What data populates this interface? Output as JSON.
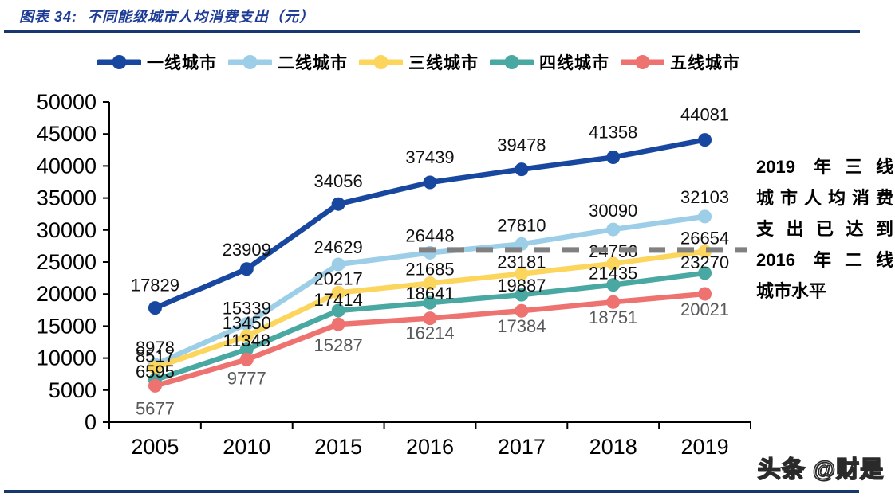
{
  "figure": {
    "title": "图表 34:  不同能级城市人均消费支出（元）"
  },
  "annotation": {
    "lines": [
      "2019 年三线",
      "城市人均消费",
      "支出已达到",
      "2016 年二线",
      "城市水平"
    ]
  },
  "watermark": "头条 @财是",
  "colors": {
    "title": "#1E3C96",
    "rule": "#17376E",
    "axis": "#000000",
    "reference_line": "#808080",
    "tier5_label_gray": "#58595B"
  },
  "chart_data": {
    "type": "line",
    "title": "不同能级城市人均消费支出（元）",
    "xlabel": "",
    "ylabel": "",
    "categories": [
      "2005",
      "2010",
      "2015",
      "2016",
      "2017",
      "2018",
      "2019"
    ],
    "series": [
      {
        "name": "一线城市",
        "color": "#17479E",
        "label_color": "#111111",
        "values": [
          17829,
          23909,
          34056,
          37439,
          39478,
          41358,
          44081
        ]
      },
      {
        "name": "二线城市",
        "color": "#9CCEE8",
        "label_color": "#111111",
        "values": [
          8978,
          15339,
          24629,
          26448,
          27810,
          30090,
          32103
        ]
      },
      {
        "name": "三线城市",
        "color": "#FBD55C",
        "label_color": "#111111",
        "values": [
          8517,
          13450,
          20217,
          21685,
          23181,
          24756,
          26654
        ]
      },
      {
        "name": "四线城市",
        "color": "#4AA8A2",
        "label_color": "#111111",
        "values": [
          6595,
          11348,
          17414,
          18641,
          19887,
          21435,
          23270
        ]
      },
      {
        "name": "五线城市",
        "color": "#EE7270",
        "label_color": "#58595B",
        "values": [
          5677,
          9777,
          15287,
          16214,
          17384,
          18751,
          20021
        ]
      }
    ],
    "ylim": [
      0,
      50000
    ],
    "ytick_step": 5000,
    "yticks": [
      0,
      5000,
      10000,
      15000,
      20000,
      25000,
      30000,
      35000,
      40000,
      45000,
      50000
    ],
    "grid": false,
    "legend_position": "top",
    "marker": "circle",
    "reference_line": {
      "value": 26448,
      "style": "dashed",
      "color": "#808080",
      "from_category": "2016",
      "to_category": "2019",
      "meaning": "2016 年二线城市水平"
    }
  }
}
